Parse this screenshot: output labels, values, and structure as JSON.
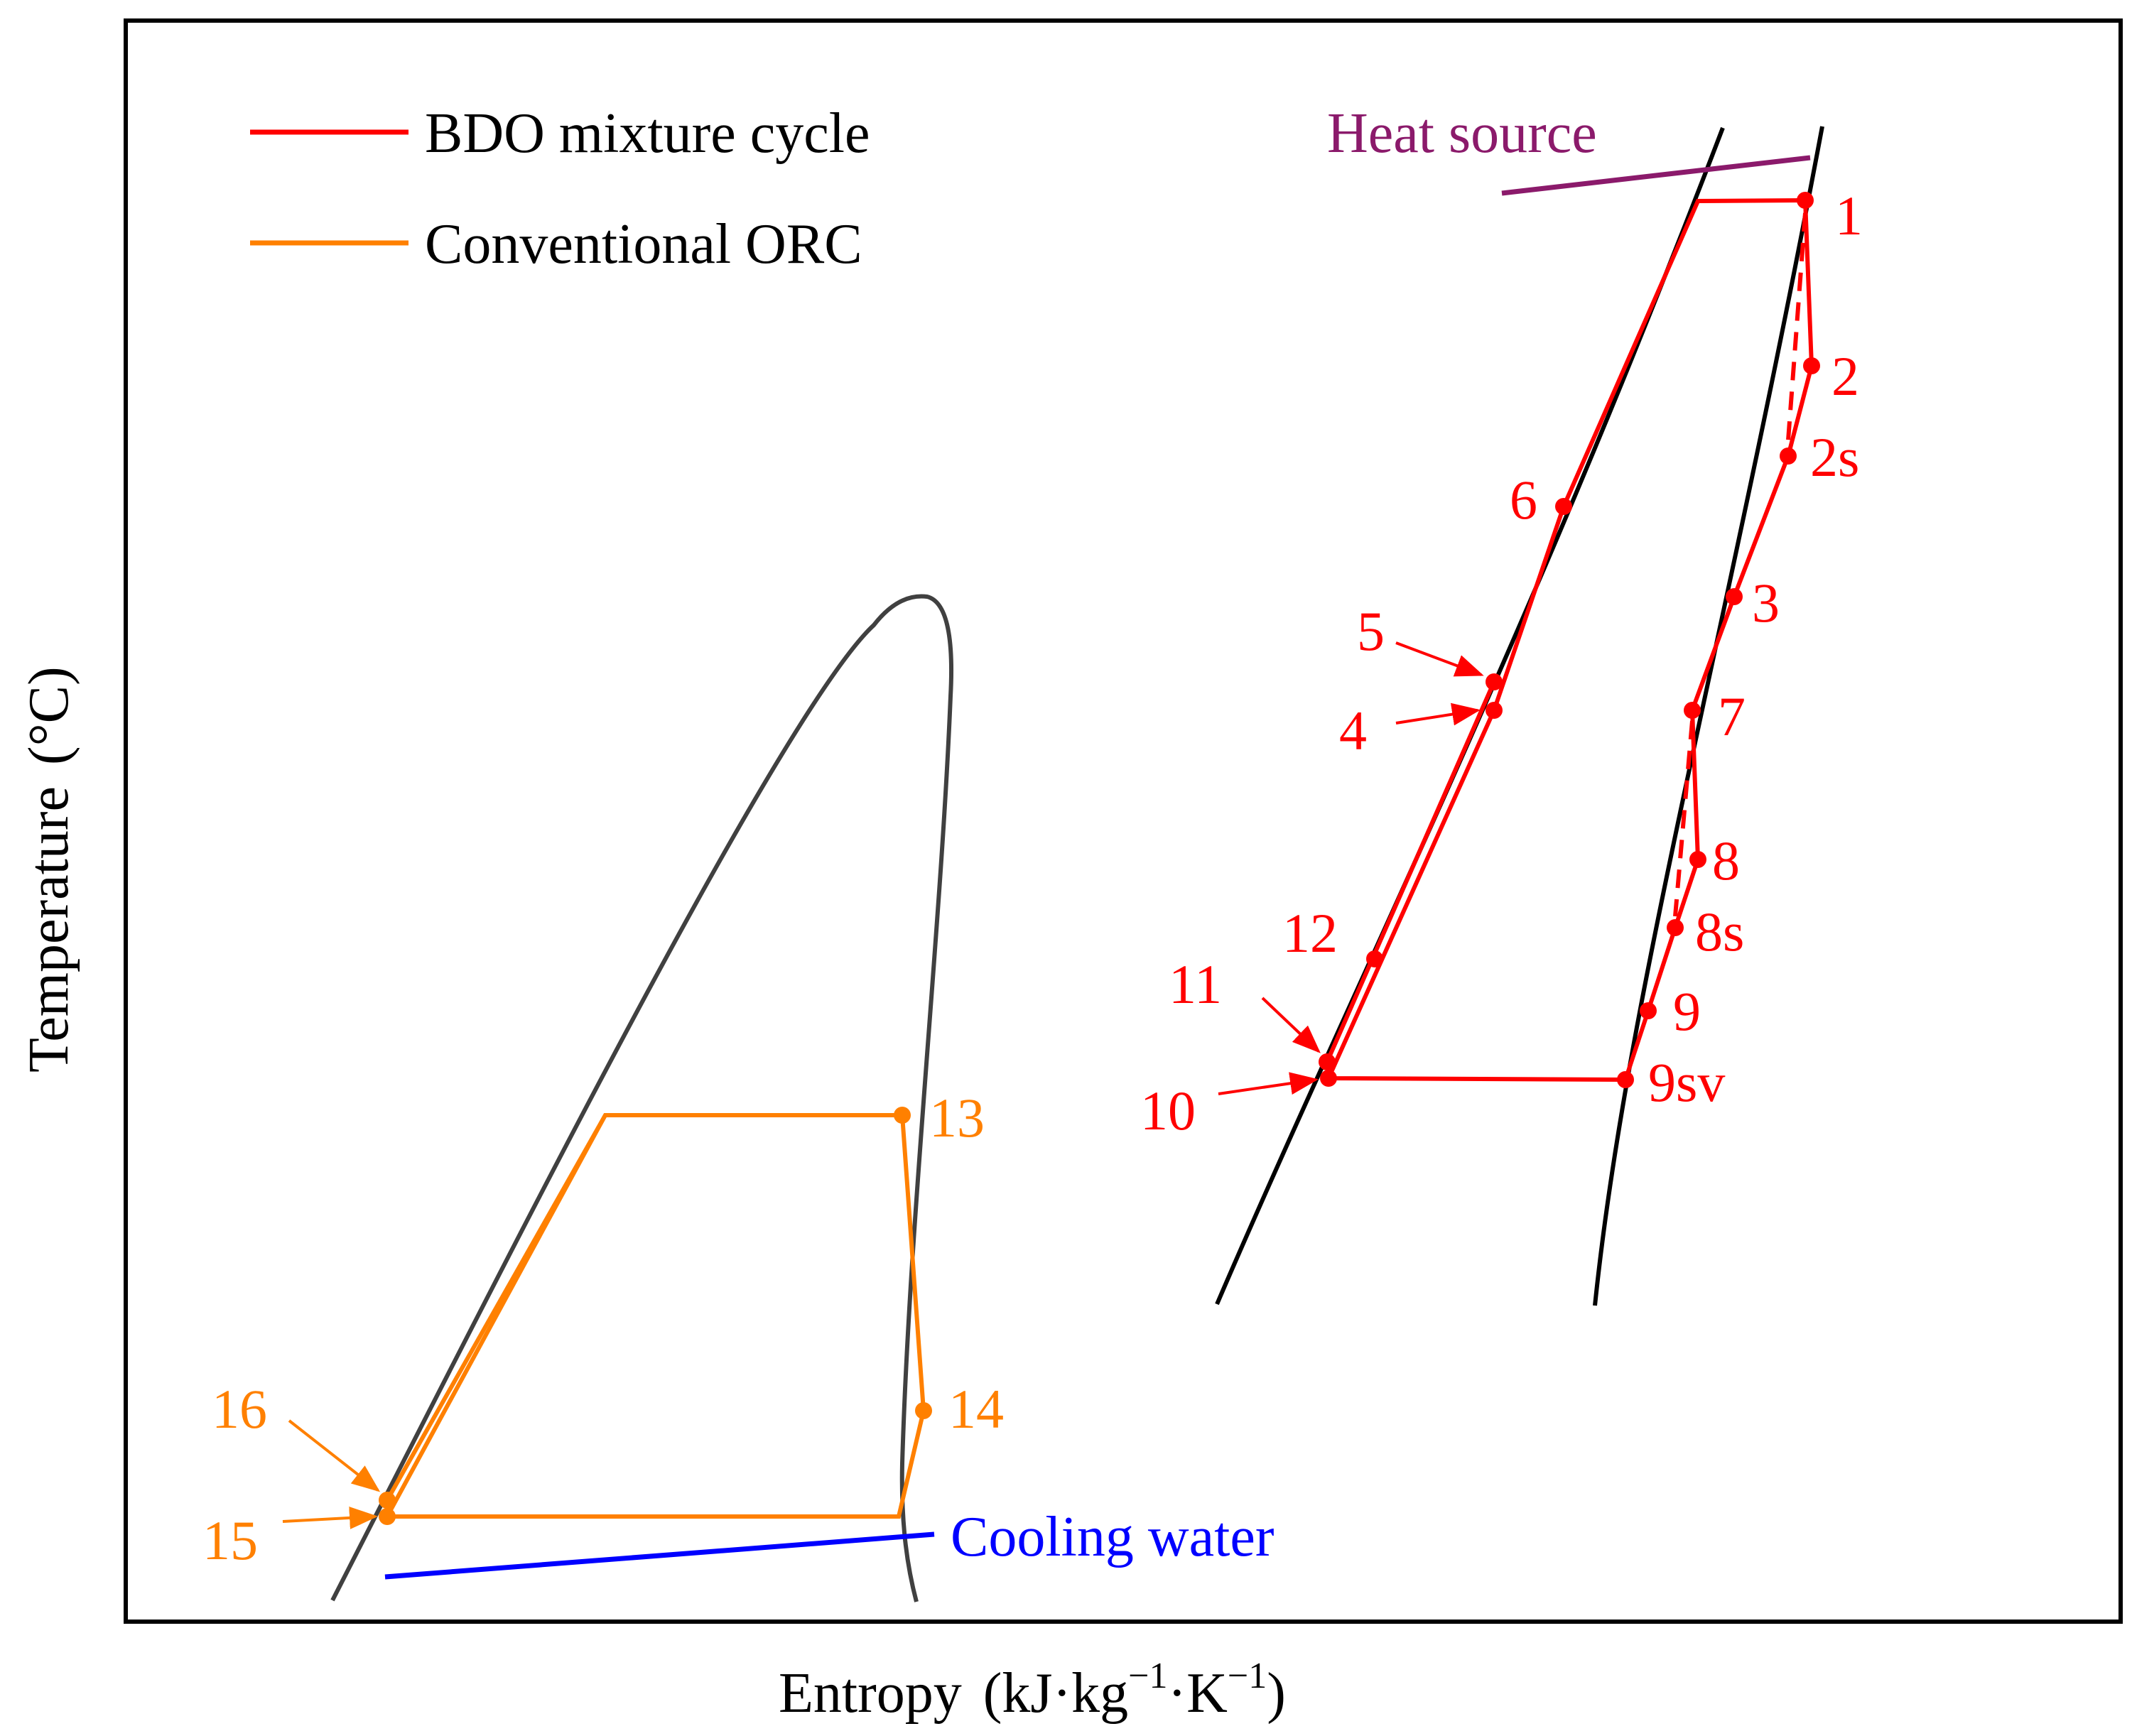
{
  "axes": {
    "xlabel": "Entropy",
    "xunit_base": "(kJ·kg",
    "xunit_exp1": "−1",
    "xunit_mid": "·K",
    "xunit_exp2": "−1",
    "xunit_close": ")",
    "ylabel": "Temperature",
    "yunit": "(°C)"
  },
  "legend": {
    "items": [
      {
        "label": "BDO mixture cycle",
        "color": "#ff0000"
      },
      {
        "label": "Conventional ORC",
        "color": "#ff8000"
      }
    ]
  },
  "annotations": {
    "heat_source": {
      "label": "Heat source",
      "color": "#8b1a6b"
    },
    "cooling_water": {
      "label": "Cooling water",
      "color": "#0000ff"
    }
  },
  "bdo_points": [
    "1",
    "2",
    "2s",
    "3",
    "4",
    "5",
    "6",
    "7",
    "8",
    "8s",
    "9",
    "9sv",
    "10",
    "11",
    "12"
  ],
  "orc_points": [
    "13",
    "14",
    "15",
    "16"
  ]
}
